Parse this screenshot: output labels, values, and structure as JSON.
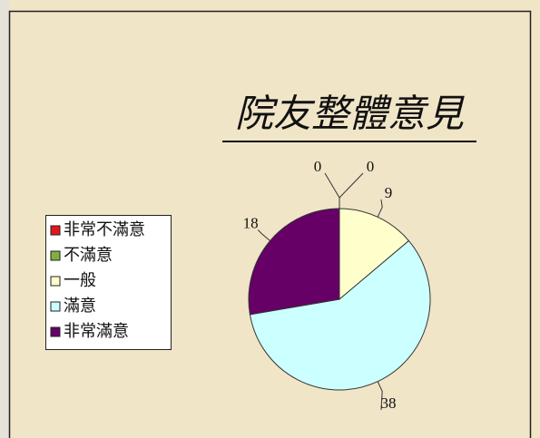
{
  "chart_data": {
    "type": "pie",
    "title": "院友整體意見",
    "categories": [
      "非常不滿意",
      "不滿意",
      "一般",
      "滿意",
      "非常滿意"
    ],
    "values": [
      0,
      0,
      9,
      38,
      18
    ],
    "colors": [
      "#e8141b",
      "#7fb13f",
      "#ffffcc",
      "#ccffff",
      "#660066"
    ]
  }
}
